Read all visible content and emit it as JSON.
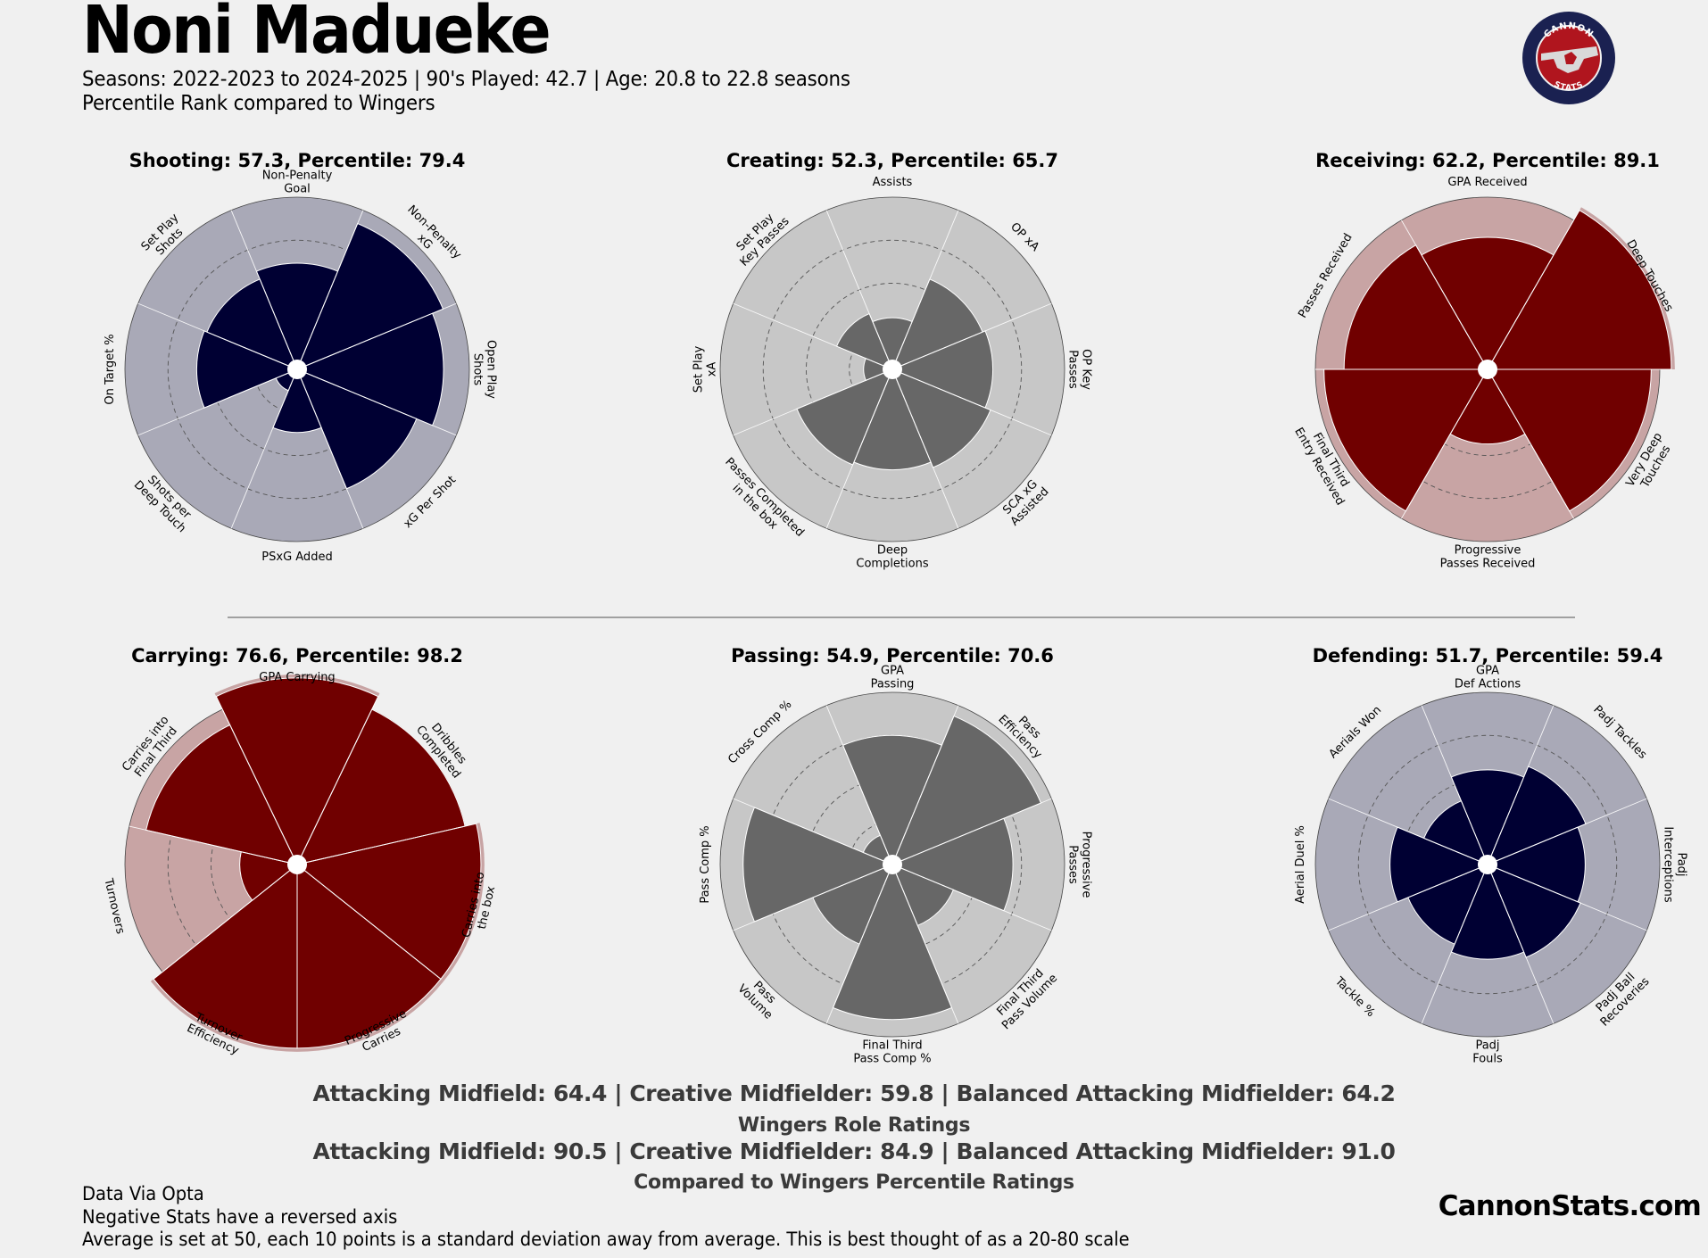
{
  "header": {
    "player_name": "Noni Madueke",
    "subtitle_line1": "Seasons: 2022-2023 to 2024-2025 | 90's Played: 42.7 | Age: 20.8 to 22.8 seasons",
    "subtitle_line2": "Percentile Rank compared to Wingers"
  },
  "logo": {
    "text_top": "CANNON",
    "text_bottom": "STATS",
    "colors": {
      "ring": "#1a2151",
      "inner": "#b0151e",
      "shape": "#d9d9d9"
    }
  },
  "colors": {
    "background": "#f0f0f0",
    "navy_bar": "#000033",
    "navy_bg": "#a9a9b7",
    "maroon_bar": "#700000",
    "maroon_bg": "#c8a4a4",
    "gray_bar": "#676767",
    "gray_bg": "#c7c7c7",
    "divider": "#707070"
  },
  "chart_data": [
    {
      "type": "radial_bar",
      "title": "Shooting: 57.3, Percentile: 79.4",
      "score": 57.3,
      "percentile": 79.4,
      "scale": [
        20,
        80
      ],
      "palette": "navy",
      "categories": [
        "Non-Penalty\nGoal",
        "Non-Penalty\nxG",
        "Open Play\nShots",
        "xG Per Shot",
        "PSxG Added",
        "Shots per\nDeep Touch",
        "On Target %",
        "Set Play\nShots"
      ],
      "values": [
        57,
        75,
        71,
        65,
        42,
        28,
        55,
        54
      ]
    },
    {
      "type": "radial_bar",
      "title": "Creating: 52.3, Percentile: 65.7",
      "score": 52.3,
      "percentile": 65.7,
      "scale": [
        20,
        80
      ],
      "palette": "gray",
      "categories": [
        "Assists",
        "OP xA",
        "OP Key\nPasses",
        "SCA xG\nAssisted",
        "Deep\nCompletions",
        "Passes Completed\nin the box",
        "Set Play\nxA",
        "Set Play\nKey Passes"
      ],
      "values": [
        38,
        54,
        55,
        57,
        55,
        56,
        30,
        41
      ]
    },
    {
      "type": "radial_bar",
      "title": "Receiving: 62.2, Percentile: 89.1",
      "score": 62.2,
      "percentile": 89.1,
      "scale": [
        20,
        80
      ],
      "palette": "maroon",
      "categories": [
        "GPA Received",
        "Deep Touches",
        "Very Deep\nTouches",
        "Progressive\nPasses Received",
        "Final Third\nEntry Received",
        "Passes Received"
      ],
      "values": [
        66,
        84,
        77,
        46,
        77,
        70
      ]
    },
    {
      "type": "radial_bar",
      "title": "Carrying: 76.6, Percentile: 98.2",
      "score": 76.6,
      "percentile": 98.2,
      "scale": [
        20,
        80
      ],
      "palette": "maroon",
      "categories": [
        "GPA Carrying",
        "Dribbles\nCompleted",
        "Carries into\nthe box",
        "Progressive\nCarries",
        "Turnover\nEfficiency",
        "Turnovers",
        "Carries into\nFinal Third"
      ],
      "values": [
        85,
        80,
        84,
        84,
        84,
        40,
        74
      ]
    },
    {
      "type": "radial_bar",
      "title": "Passing: 54.9, Percentile: 70.6",
      "score": 54.9,
      "percentile": 70.6,
      "scale": [
        20,
        80
      ],
      "palette": "gray",
      "categories": [
        "GPA\nPassing",
        "Pass\nEfficiency",
        "Progressive\nPasses",
        "Final Third\nPass Volume",
        "Final Third\nPass Comp %",
        "Pass\nVolume",
        "Pass Comp %",
        "Cross Comp %"
      ],
      "values": [
        65,
        76,
        62,
        43,
        74,
        50,
        72,
        31
      ]
    },
    {
      "type": "radial_bar",
      "title": "Defending: 51.7, Percentile: 59.4",
      "score": 51.7,
      "percentile": 59.4,
      "scale": [
        20,
        80
      ],
      "palette": "navy",
      "categories": [
        "GPA\nDef Actions",
        "Padj Tackles",
        "Padj\nInterceptions",
        "Padj Ball\nRecoveries",
        "Padj\nFouls",
        "Tackle %",
        "Aerial Duel %",
        "Aerials Won"
      ],
      "values": [
        53,
        57,
        54,
        55,
        53,
        50,
        54,
        44
      ]
    }
  ],
  "ratings": {
    "line1": "Attacking Midfield: 64.4 | Creative Midfielder: 59.8 | Balanced Attacking Midfielder: 64.2",
    "line2": "Wingers Role Ratings",
    "line3": "Attacking Midfield: 90.5 | Creative Midfielder: 84.9 | Balanced Attacking Midfielder: 91.0",
    "line4": "Compared to Wingers Percentile Ratings"
  },
  "footnotes": {
    "line1": "Data Via Opta",
    "line2": "Negative Stats have a reversed axis",
    "line3": "Average is set at 50, each 10 points is a standard deviation away from average. This is best thought of as a 20-80 scale"
  },
  "site": "CannonStats.com"
}
